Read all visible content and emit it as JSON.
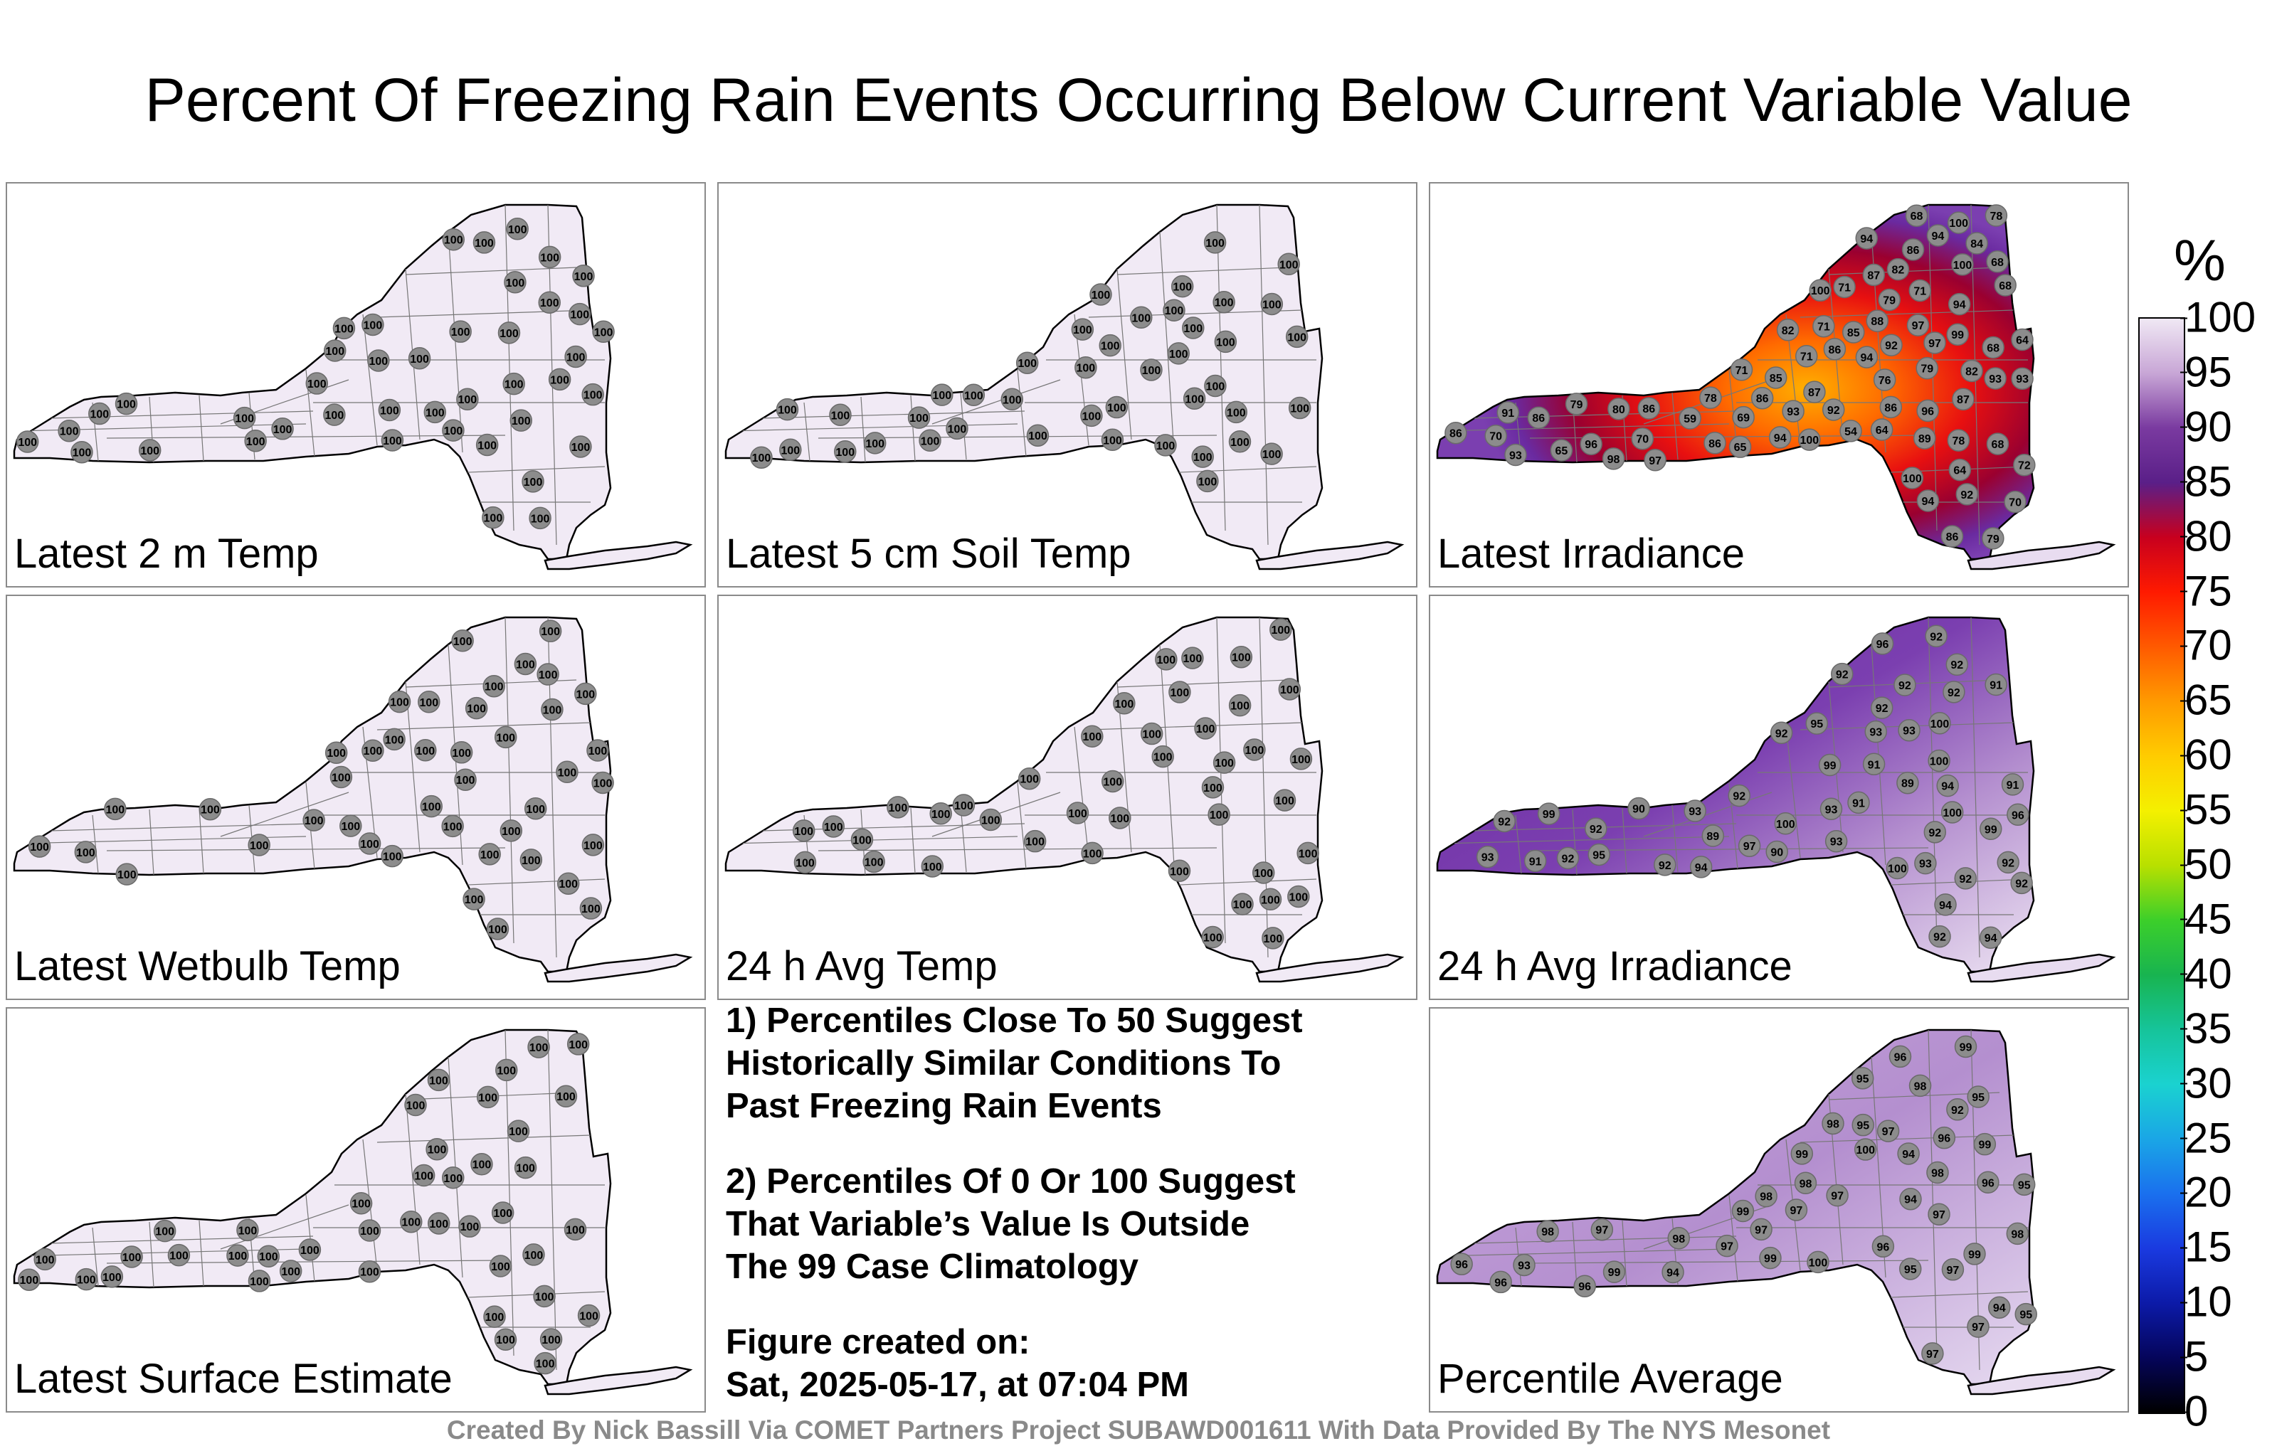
{
  "title": "Percent Of Freezing Rain Events Occurring Below Current Variable Value",
  "panels": [
    {
      "label": "Latest 2 m Temp",
      "style": "flat",
      "values": [
        "100",
        "100",
        "100",
        "100",
        "100",
        "100",
        "100",
        "100",
        "100",
        "100",
        "100",
        "100",
        "100",
        "100",
        "100",
        "100",
        "100",
        "100",
        "100",
        "100",
        "100",
        "100",
        "100",
        "100",
        "100",
        "100",
        "100",
        "100",
        "100",
        "100",
        "100",
        "100",
        "100",
        "100",
        "100",
        "100",
        "100",
        "100",
        "100",
        "100",
        "100",
        "100"
      ]
    },
    {
      "label": "Latest 5 cm Soil Temp",
      "style": "flat",
      "values": [
        "100",
        "100",
        "100",
        "100",
        "100",
        "100",
        "100",
        "100",
        "100",
        "100",
        "100",
        "100",
        "100",
        "100",
        "100",
        "100",
        "100",
        "100",
        "100",
        "100",
        "100",
        "100",
        "100",
        "100",
        "100",
        "100",
        "100",
        "100",
        "100",
        "100",
        "100",
        "100",
        "100",
        "100",
        "100",
        "100",
        "100",
        "100",
        "100",
        "100",
        "100",
        "100"
      ]
    },
    {
      "label": "Latest Irradiance",
      "style": "hot",
      "values": [
        "97",
        "100",
        "87",
        "78",
        "79",
        "86",
        "71",
        "89",
        "96",
        "92",
        "86",
        "94",
        "88",
        "94",
        "76",
        "86",
        "68",
        "80",
        "68",
        "86",
        "68",
        "82",
        "64",
        "71",
        "70",
        "79",
        "85",
        "78",
        "97",
        "100",
        "97",
        "85",
        "59",
        "72",
        "69",
        "68",
        "86",
        "94",
        "86",
        "100",
        "87",
        "71",
        "64",
        "54",
        "87",
        "71",
        "86",
        "82",
        "93",
        "78",
        "82",
        "94",
        "92",
        "65",
        "84",
        "70",
        "79",
        "64",
        "94",
        "93",
        "71",
        "100",
        "93",
        "70",
        "68",
        "91",
        "93",
        "86",
        "86",
        "65",
        "79",
        "96",
        "100",
        "92",
        "99",
        "98",
        "94"
      ]
    },
    {
      "label": "Latest Wetbulb Temp",
      "style": "flat",
      "values": [
        "100",
        "100",
        "100",
        "100",
        "100",
        "100",
        "100",
        "100",
        "100",
        "100",
        "100",
        "100",
        "100",
        "100",
        "100",
        "100",
        "100",
        "100",
        "100",
        "100",
        "100",
        "100",
        "100",
        "100",
        "100",
        "100",
        "100",
        "100",
        "100",
        "100",
        "100",
        "100",
        "100",
        "100",
        "100",
        "100",
        "100",
        "100",
        "100",
        "100",
        "100",
        "100"
      ]
    },
    {
      "label": "24 h Avg Temp",
      "style": "flat",
      "values": [
        "100",
        "100",
        "100",
        "100",
        "100",
        "100",
        "100",
        "100",
        "100",
        "100",
        "100",
        "100",
        "100",
        "100",
        "100",
        "100",
        "100",
        "100",
        "100",
        "100",
        "100",
        "100",
        "100",
        "100",
        "100",
        "100",
        "100",
        "100",
        "100",
        "100",
        "100",
        "100",
        "100",
        "100",
        "100",
        "100",
        "100",
        "100",
        "100",
        "100",
        "100",
        "100"
      ]
    },
    {
      "label": "24 h Avg Irradiance",
      "style": "purple",
      "values": [
        "92",
        "92",
        "91",
        "89",
        "90",
        "92",
        "92",
        "91",
        "92",
        "91",
        "89",
        "90",
        "91",
        "92",
        "92",
        "91",
        "92",
        "93",
        "92",
        "92",
        "92",
        "93",
        "94",
        "92",
        "93",
        "93",
        "92",
        "93",
        "94",
        "99",
        "100",
        "93",
        "94",
        "94",
        "92",
        "93",
        "100",
        "99",
        "97",
        "96",
        "95",
        "100",
        "92",
        "92",
        "100",
        "95",
        "99",
        "100",
        "96",
        "92"
      ]
    },
    {
      "label": "Latest Surface Estimate",
      "style": "flat",
      "values": [
        "100",
        "100",
        "100",
        "100",
        "100",
        "100",
        "100",
        "100",
        "100",
        "100",
        "100",
        "100",
        "100",
        "100",
        "100",
        "100",
        "100",
        "100",
        "100",
        "100",
        "100",
        "100",
        "100",
        "100",
        "100",
        "100",
        "100",
        "100",
        "100",
        "100",
        "100",
        "100",
        "100",
        "100",
        "100",
        "100",
        "100",
        "100",
        "100",
        "100",
        "100",
        "100"
      ]
    },
    {
      "label": "Percentile Average",
      "style": "lavender",
      "values": [
        "98",
        "99",
        "97",
        "95",
        "97",
        "96",
        "98",
        "97",
        "95",
        "94",
        "96",
        "97",
        "94",
        "95",
        "96",
        "97",
        "98",
        "99",
        "97",
        "96",
        "98",
        "97",
        "99",
        "98",
        "95",
        "94",
        "92",
        "93",
        "98",
        "99",
        "100",
        "97",
        "96",
        "95",
        "99",
        "98",
        "97",
        "96",
        "100",
        "99",
        "98",
        "95",
        "94",
        "96",
        "99",
        "97"
      ]
    }
  ],
  "notes": {
    "note1": "1) Percentiles Close To 50 Suggest\nHistorically Similar Conditions To\nPast Freezing Rain Events",
    "note2": "2) Percentiles Of 0 Or 100 Suggest\nThat Variable’s Value Is Outside\nThe 99 Case Climatology",
    "created": "Figure created on:\nSat, 2025-05-17, at 07:04 PM"
  },
  "credit": "Created By Nick Bassill Via COMET Partners Project SUBAWD001611 With Data Provided By The NYS Mesonet",
  "colorbar": {
    "unit": "%",
    "ticks": [
      "100",
      "95",
      "90",
      "85",
      "80",
      "75",
      "70",
      "65",
      "60",
      "55",
      "50",
      "45",
      "40",
      "35",
      "30",
      "25",
      "20",
      "15",
      "10",
      "5",
      "0"
    ],
    "colors": [
      "#f0e8f4",
      "#c8a6d6",
      "#7a3aa0",
      "#5a1f88",
      "#c8001e",
      "#ff1a00",
      "#ff5a00",
      "#ff9a00",
      "#ffcc00",
      "#f4f000",
      "#b8e000",
      "#3ccf2a",
      "#18b450",
      "#16c49a",
      "#1ad2d0",
      "#1aa6e6",
      "#1a70ee",
      "#1a3ae0",
      "#0c1aa8",
      "#05055a",
      "#000000"
    ]
  }
}
